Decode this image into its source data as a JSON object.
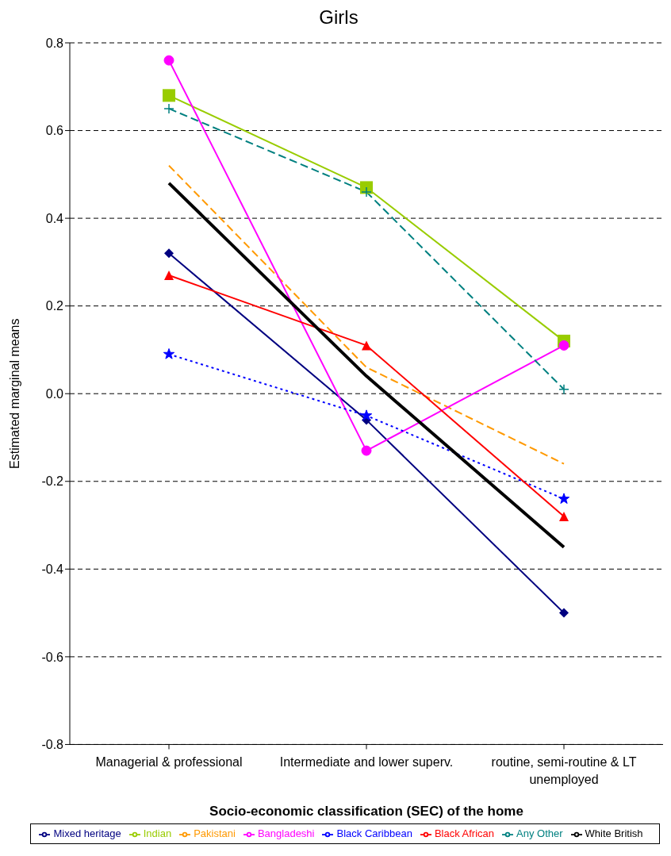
{
  "chart_data": {
    "type": "line",
    "title": "Girls",
    "xlabel": "Socio-economic classification (SEC) of the home",
    "ylabel": "Estimated marginal means",
    "categories": [
      "Managerial & professional",
      "Intermediate and lower superv.",
      "routine, semi-routine & LT unemployed"
    ],
    "ylim": [
      -0.8,
      0.8
    ],
    "yticks": [
      {
        "value": -0.8,
        "label": "-0.8"
      },
      {
        "value": -0.6,
        "label": "-0.6"
      },
      {
        "value": -0.4,
        "label": "-0.4"
      },
      {
        "value": -0.2,
        "label": "-0.2"
      },
      {
        "value": 0,
        "label": "0.0"
      },
      0.2,
      0.4,
      0.6,
      0.8
    ],
    "grid": "y",
    "legend": "bottom",
    "series": [
      {
        "name": "Mixed heritage",
        "color": "#000080",
        "marker": "diamond",
        "line_style": "solid",
        "values": [
          0.32,
          -0.06,
          -0.5
        ]
      },
      {
        "name": "Indian",
        "color": "#99cc00",
        "marker": "square",
        "line_style": "solid",
        "values": [
          0.68,
          0.47,
          0.12
        ]
      },
      {
        "name": "Pakistani",
        "color": "#ff9900",
        "marker": "none",
        "line_style": "dashed",
        "values": [
          0.52,
          0.06,
          -0.16
        ]
      },
      {
        "name": "Bangladeshi",
        "color": "#ff00ff",
        "marker": "circle",
        "line_style": "solid",
        "values": [
          0.76,
          -0.13,
          0.11
        ]
      },
      {
        "name": "Black Caribbean",
        "color": "#0000ff",
        "marker": "star",
        "line_style": "dotted",
        "values": [
          0.09,
          -0.05,
          -0.24
        ]
      },
      {
        "name": "Black African",
        "color": "#ff0000",
        "marker": "triangle",
        "line_style": "solid",
        "values": [
          0.27,
          0.11,
          -0.28
        ]
      },
      {
        "name": "Any Other",
        "color": "#008080",
        "marker": "cross",
        "line_style": "dashed",
        "values": [
          0.65,
          0.46,
          0.01
        ]
      },
      {
        "name": "White British",
        "color": "#000000",
        "marker": "none",
        "line_style": "solid",
        "values": [
          0.48,
          0.04,
          -0.35
        ]
      }
    ]
  }
}
